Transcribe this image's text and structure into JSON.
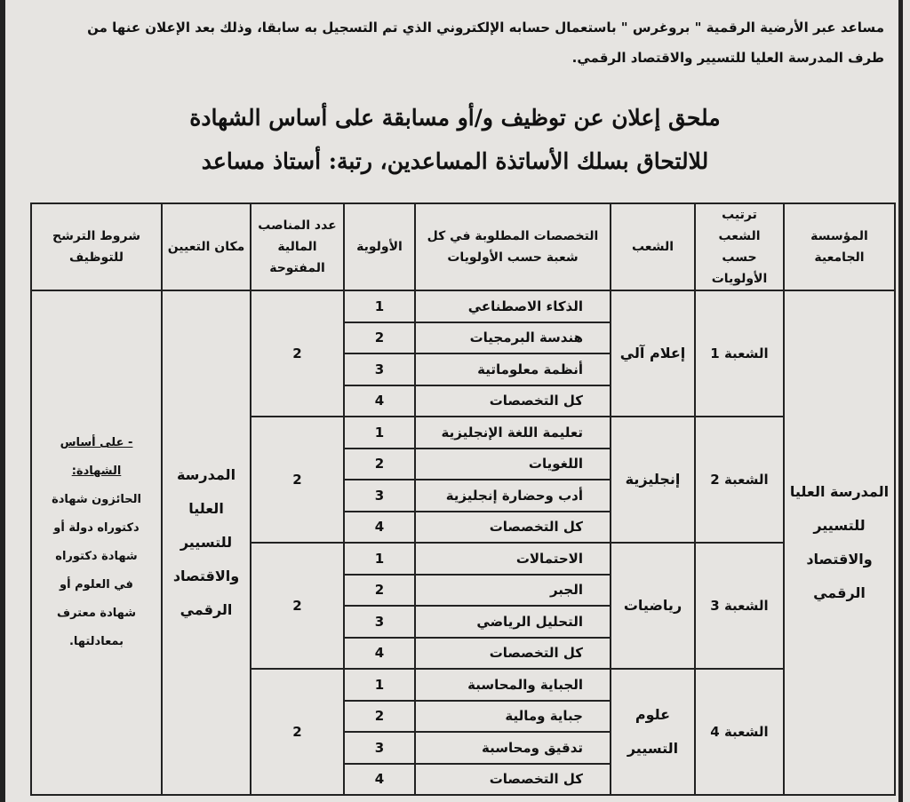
{
  "intro": {
    "line1": "مساعد عبر الأرضية الرقمية \" بروغرس \" باستعمال حسابه الإلكتروني الذي تم التسجيل به سابقا، وذلك بعد الإعلان عنها من",
    "line2": "طرف المدرسة العليا للتسيير والاقتصاد الرقمي."
  },
  "title": {
    "line1": "ملحق إعلان عن توظيف و/أو مسابقة على أساس الشهادة",
    "line2": "للالتحاق بسلك الأساتذة المساعدين، رتبة: أستاذ مساعد"
  },
  "table": {
    "headers": [
      "المؤسسة الجامعية",
      "ترتيب الشعب حسب الأولويات",
      "الشعب",
      "التخصصات المطلوبة في كل شعبة حسب الأولويات",
      "الأولوية",
      "عدد المناصب المالية المفتوحة",
      "مكان التعيين",
      "شروط الترشح للتوظيف"
    ],
    "institution": "المدرسة العليا للتسيير والاقتصاد الرقمي",
    "placement": "المدرسة العليا للتسيير والاقتصاد الرقمي",
    "conditions": {
      "heading": "- على أساس الشهادة:",
      "text": "الحائزون شهادة دكتوراه دولة أو شهادة دكتوراه في العلوم أو شهادة معترف بمعادلتها."
    },
    "groups": [
      {
        "rank": "الشعبة 1",
        "branch": "إعلام آلي",
        "positions": "2",
        "rows": [
          {
            "spec": "الذكاء الاصطناعي",
            "priority": "1"
          },
          {
            "spec": "هندسة البرمجيات",
            "priority": "2"
          },
          {
            "spec": "أنظمة معلوماتية",
            "priority": "3"
          },
          {
            "spec": "كل التخصصات",
            "priority": "4"
          }
        ]
      },
      {
        "rank": "الشعبة 2",
        "branch": "إنجليزية",
        "positions": "2",
        "rows": [
          {
            "spec": "تعليمة اللغة الإنجليزية",
            "priority": "1"
          },
          {
            "spec": "اللغويات",
            "priority": "2"
          },
          {
            "spec": "أدب وحضارة إنجليزية",
            "priority": "3"
          },
          {
            "spec": "كل التخصصات",
            "priority": "4"
          }
        ]
      },
      {
        "rank": "الشعبة 3",
        "branch": "رياضيات",
        "positions": "2",
        "rows": [
          {
            "spec": "الاحتمالات",
            "priority": "1"
          },
          {
            "spec": "الجبر",
            "priority": "2"
          },
          {
            "spec": "التحليل الرياضي",
            "priority": "3"
          },
          {
            "spec": "كل التخصصات",
            "priority": "4"
          }
        ]
      },
      {
        "rank": "الشعبة 4",
        "branch": "علوم التسيير",
        "positions": "2",
        "rows": [
          {
            "spec": "الجباية والمحاسبة",
            "priority": "1"
          },
          {
            "spec": "جباية ومالية",
            "priority": "2"
          },
          {
            "spec": "تدقيق ومحاسبة",
            "priority": "3"
          },
          {
            "spec": "كل التخصصات",
            "priority": "4"
          }
        ]
      }
    ]
  }
}
